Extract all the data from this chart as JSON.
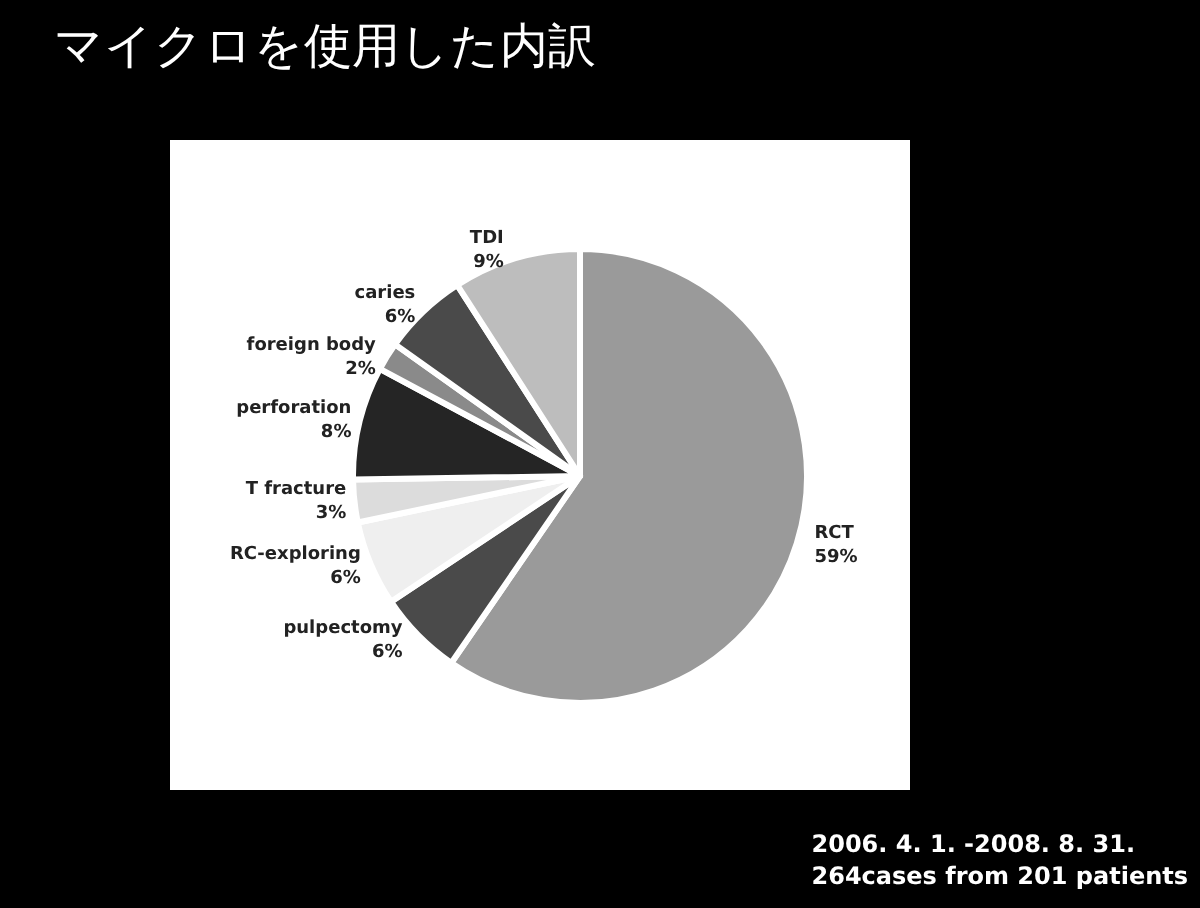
{
  "chart_data": {
    "type": "pie",
    "title": "マイクロを使用した内訳",
    "categories": [
      "RCT",
      "pulpectomy",
      "RC-exploring",
      "T fracture",
      "perforation",
      "foreign body",
      "caries",
      "TDI"
    ],
    "values": [
      59,
      6,
      6,
      3,
      8,
      2,
      6,
      9
    ],
    "colors": [
      "#9a9a9a",
      "#4a4a4a",
      "#efefef",
      "#dcdcdc",
      "#252525",
      "#8a8a8a",
      "#4a4a4a",
      "#bdbdbd"
    ],
    "value_labels": [
      "59%",
      "6%",
      "6%",
      "3%",
      "8%",
      "2%",
      "6%",
      "9%"
    ],
    "legend": false,
    "annotations": [
      "2006. 4. 1. -2008. 8. 31.",
      "264cases from 201 patients"
    ]
  }
}
